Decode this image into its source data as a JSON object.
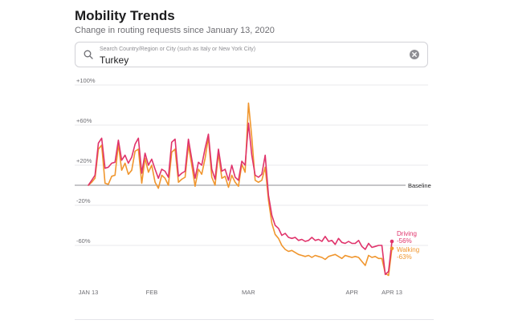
{
  "header": {
    "title": "Mobility Trends",
    "subtitle": "Change in routing requests since January 13, 2020"
  },
  "search": {
    "placeholder": "Search Country/Region or City (such as Italy or New York City)",
    "value": "Turkey"
  },
  "icons": {
    "search": "search-icon",
    "clear": "clear-icon"
  },
  "colors": {
    "driving": "#e0336b",
    "walking": "#f0962e",
    "baseline": "#8e8e93",
    "grid": "#e8e8ed"
  },
  "chart_data": {
    "type": "line",
    "title": "",
    "xlabel": "",
    "ylabel": "",
    "ylim": [
      -100,
      100
    ],
    "yticks": [
      {
        "value": 100,
        "label": "+100%"
      },
      {
        "value": 60,
        "label": "+60%"
      },
      {
        "value": 20,
        "label": "+20%"
      },
      {
        "value": -20,
        "label": "-20%"
      },
      {
        "value": -60,
        "label": "-60%"
      }
    ],
    "xticks": [
      {
        "day": 0,
        "label": "JAN 13"
      },
      {
        "day": 19,
        "label": "FEB"
      },
      {
        "day": 48,
        "label": "MAR"
      },
      {
        "day": 79,
        "label": "APR"
      },
      {
        "day": 91,
        "label": "APR 13"
      }
    ],
    "baseline_label": "Baseline",
    "baseline_value": 0,
    "grid": true,
    "series": [
      {
        "name": "Driving",
        "end_label": "-56%",
        "values": [
          0,
          5,
          10,
          42,
          47,
          17,
          18,
          22,
          23,
          45,
          25,
          30,
          22,
          28,
          41,
          47,
          12,
          32,
          20,
          26,
          16,
          7,
          16,
          14,
          8,
          43,
          46,
          9,
          12,
          14,
          46,
          26,
          7,
          23,
          20,
          37,
          51,
          16,
          6,
          36,
          14,
          16,
          5,
          20,
          8,
          5,
          24,
          20,
          62,
          30,
          10,
          8,
          11,
          30,
          -10,
          -30,
          -40,
          -43,
          -50,
          -48,
          -52,
          -53,
          -52,
          -55,
          -54,
          -56,
          -55,
          -52,
          -55,
          -54,
          -56,
          -51,
          -56,
          -55,
          -59,
          -53,
          -57,
          -58,
          -56,
          -58,
          -58,
          -55,
          -61,
          -64,
          -58,
          -62,
          -61,
          -60,
          -60,
          -89,
          -86,
          -56
        ]
      },
      {
        "name": "Walking",
        "end_label": "-63%",
        "values": [
          0,
          3,
          7,
          36,
          40,
          2,
          1,
          9,
          10,
          41,
          15,
          22,
          11,
          15,
          34,
          36,
          2,
          27,
          13,
          20,
          3,
          -3,
          10,
          7,
          0,
          33,
          36,
          3,
          6,
          8,
          40,
          20,
          -1,
          16,
          11,
          27,
          48,
          8,
          0,
          32,
          7,
          9,
          -2,
          10,
          3,
          -1,
          21,
          13,
          82,
          48,
          5,
          3,
          5,
          18,
          -15,
          -38,
          -49,
          -53,
          -60,
          -64,
          -66,
          -65,
          -67,
          -69,
          -70,
          -71,
          -70,
          -72,
          -70,
          -71,
          -72,
          -74,
          -71,
          -70,
          -69,
          -71,
          -73,
          -70,
          -71,
          -72,
          -71,
          -72,
          -76,
          -80,
          -70,
          -72,
          -71,
          -73,
          -73,
          -88,
          -90,
          -63
        ]
      }
    ]
  }
}
